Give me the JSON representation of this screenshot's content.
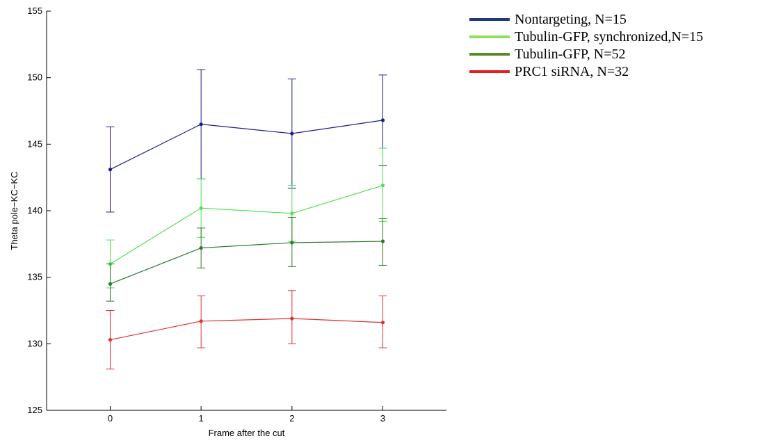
{
  "chart_data": {
    "type": "line",
    "xlabel": "Frame after the cut",
    "ylabel": "Theta pole−KC−KC",
    "x": [
      0,
      1,
      2,
      3
    ],
    "x_ticks": [
      "0",
      "1",
      "2",
      "3"
    ],
    "xlim": [
      -0.7,
      3.7
    ],
    "ylim": [
      125,
      155
    ],
    "y_ticks": [
      "125",
      "130",
      "135",
      "140",
      "145",
      "150",
      "155"
    ],
    "grid": false,
    "legend_placement": "outside-top-right",
    "series": [
      {
        "name": "Nontargeting, N=15",
        "color": "#1c1c8c",
        "legend_color": "#1f3a7a",
        "values": [
          143.1,
          146.5,
          145.8,
          146.8
        ],
        "err_upper": [
          146.3,
          150.6,
          149.9,
          150.2
        ],
        "err_lower": [
          139.9,
          142.4,
          141.7,
          143.4
        ]
      },
      {
        "name": "Tubulin-GFP, synchronized,N=15",
        "color": "#4fe04f",
        "legend_color": "#8ee05a",
        "values": [
          136.0,
          140.2,
          139.8,
          141.9
        ],
        "err_upper": [
          137.8,
          142.4,
          141.9,
          144.7
        ],
        "err_lower": [
          134.2,
          138.0,
          137.7,
          139.2
        ]
      },
      {
        "name": "Tubulin-GFP, N=52",
        "color": "#2a7a2a",
        "legend_color": "#5a8a2a",
        "values": [
          134.5,
          137.2,
          137.6,
          137.7
        ],
        "err_upper": [
          136.0,
          138.7,
          139.5,
          139.4
        ],
        "err_lower": [
          133.2,
          135.7,
          135.8,
          135.9
        ]
      },
      {
        "name": "PRC1 siRNA, N=32",
        "color": "#e03030",
        "legend_color": "#e81c1c",
        "values": [
          130.3,
          131.7,
          131.9,
          131.6
        ],
        "err_upper": [
          132.5,
          133.6,
          134.0,
          133.6
        ],
        "err_lower": [
          128.1,
          129.7,
          130.0,
          129.7
        ]
      }
    ]
  }
}
